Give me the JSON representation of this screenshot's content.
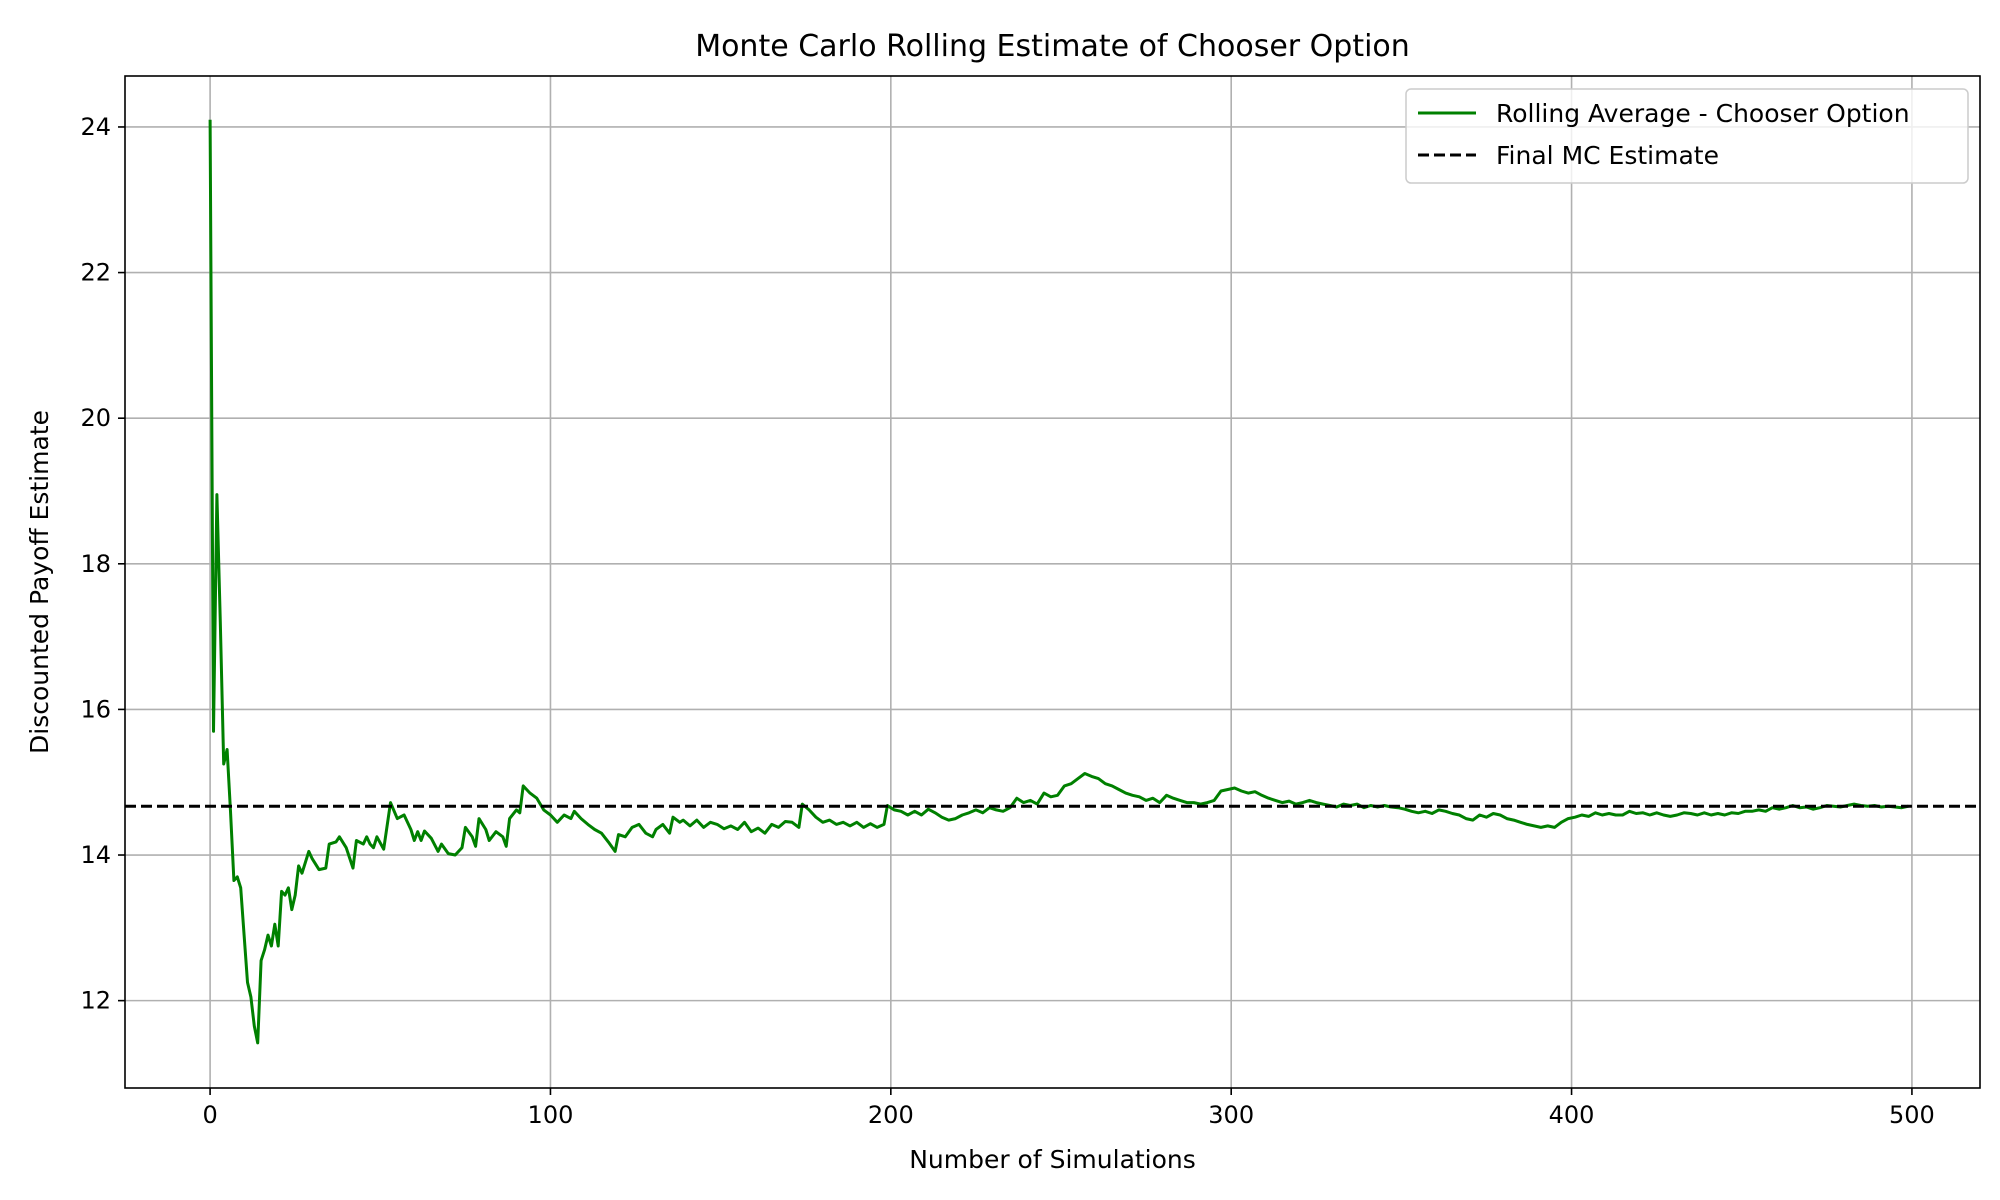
{
  "chart_data": {
    "type": "line",
    "title": "Monte Carlo Rolling Estimate of Chooser Option",
    "xlabel": "Number of Simulations",
    "ylabel": "Discounted Payoff Estimate",
    "xlim": [
      -25,
      520
    ],
    "ylim": [
      10.8,
      24.7
    ],
    "xticks": [
      0,
      100,
      200,
      300,
      400,
      500
    ],
    "yticks": [
      12,
      14,
      16,
      18,
      20,
      22,
      24
    ],
    "grid": true,
    "legend_position": "top-right",
    "series": [
      {
        "name": "Rolling Average - Chooser Option",
        "color": "#008000",
        "style": "solid",
        "points": [
          [
            0,
            24.1
          ],
          [
            1,
            15.7
          ],
          [
            2,
            18.95
          ],
          [
            3,
            17.2
          ],
          [
            4,
            15.25
          ],
          [
            5,
            15.45
          ],
          [
            6,
            14.6
          ],
          [
            7,
            13.65
          ],
          [
            8,
            13.7
          ],
          [
            9,
            13.55
          ],
          [
            10,
            12.9
          ],
          [
            11,
            12.25
          ],
          [
            12,
            12.05
          ],
          [
            13,
            11.65
          ],
          [
            14,
            11.42
          ],
          [
            15,
            12.55
          ],
          [
            16,
            12.7
          ],
          [
            17,
            12.9
          ],
          [
            18,
            12.75
          ],
          [
            19,
            13.05
          ],
          [
            20,
            12.75
          ],
          [
            21,
            13.5
          ],
          [
            22,
            13.45
          ],
          [
            23,
            13.55
          ],
          [
            24,
            13.25
          ],
          [
            25,
            13.45
          ],
          [
            26,
            13.85
          ],
          [
            27,
            13.75
          ],
          [
            28,
            13.9
          ],
          [
            29,
            14.05
          ],
          [
            30,
            13.95
          ],
          [
            32,
            13.8
          ],
          [
            34,
            13.82
          ],
          [
            35,
            14.15
          ],
          [
            37,
            14.18
          ],
          [
            38,
            14.25
          ],
          [
            40,
            14.1
          ],
          [
            42,
            13.82
          ],
          [
            43,
            14.2
          ],
          [
            45,
            14.15
          ],
          [
            46,
            14.25
          ],
          [
            47,
            14.15
          ],
          [
            48,
            14.1
          ],
          [
            49,
            14.25
          ],
          [
            51,
            14.08
          ],
          [
            53,
            14.72
          ],
          [
            55,
            14.5
          ],
          [
            57,
            14.55
          ],
          [
            59,
            14.35
          ],
          [
            60,
            14.2
          ],
          [
            61,
            14.32
          ],
          [
            62,
            14.2
          ],
          [
            63,
            14.33
          ],
          [
            65,
            14.23
          ],
          [
            67,
            14.05
          ],
          [
            68,
            14.15
          ],
          [
            70,
            14.02
          ],
          [
            72,
            14.0
          ],
          [
            74,
            14.1
          ],
          [
            75,
            14.38
          ],
          [
            77,
            14.25
          ],
          [
            78,
            14.12
          ],
          [
            79,
            14.5
          ],
          [
            81,
            14.35
          ],
          [
            82,
            14.2
          ],
          [
            84,
            14.32
          ],
          [
            86,
            14.25
          ],
          [
            87,
            14.12
          ],
          [
            88,
            14.5
          ],
          [
            90,
            14.62
          ],
          [
            91,
            14.58
          ],
          [
            92,
            14.95
          ],
          [
            94,
            14.85
          ],
          [
            96,
            14.78
          ],
          [
            98,
            14.62
          ],
          [
            100,
            14.55
          ],
          [
            102,
            14.45
          ],
          [
            104,
            14.55
          ],
          [
            106,
            14.5
          ],
          [
            107,
            14.6
          ],
          [
            109,
            14.5
          ],
          [
            111,
            14.42
          ],
          [
            113,
            14.35
          ],
          [
            115,
            14.3
          ],
          [
            117,
            14.18
          ],
          [
            119,
            14.05
          ],
          [
            120,
            14.28
          ],
          [
            122,
            14.25
          ],
          [
            124,
            14.38
          ],
          [
            126,
            14.42
          ],
          [
            128,
            14.3
          ],
          [
            130,
            14.25
          ],
          [
            131,
            14.35
          ],
          [
            133,
            14.42
          ],
          [
            135,
            14.3
          ],
          [
            136,
            14.52
          ],
          [
            138,
            14.45
          ],
          [
            139,
            14.48
          ],
          [
            141,
            14.4
          ],
          [
            143,
            14.48
          ],
          [
            145,
            14.38
          ],
          [
            147,
            14.45
          ],
          [
            149,
            14.42
          ],
          [
            151,
            14.36
          ],
          [
            153,
            14.4
          ],
          [
            155,
            14.35
          ],
          [
            157,
            14.45
          ],
          [
            159,
            14.32
          ],
          [
            161,
            14.37
          ],
          [
            163,
            14.3
          ],
          [
            165,
            14.42
          ],
          [
            167,
            14.38
          ],
          [
            169,
            14.46
          ],
          [
            171,
            14.45
          ],
          [
            173,
            14.38
          ],
          [
            174,
            14.7
          ],
          [
            176,
            14.62
          ],
          [
            178,
            14.52
          ],
          [
            180,
            14.45
          ],
          [
            182,
            14.48
          ],
          [
            184,
            14.42
          ],
          [
            186,
            14.45
          ],
          [
            188,
            14.4
          ],
          [
            190,
            14.45
          ],
          [
            192,
            14.38
          ],
          [
            194,
            14.43
          ],
          [
            196,
            14.38
          ],
          [
            198,
            14.42
          ],
          [
            199,
            14.68
          ],
          [
            201,
            14.62
          ],
          [
            203,
            14.6
          ],
          [
            205,
            14.55
          ],
          [
            207,
            14.6
          ],
          [
            209,
            14.55
          ],
          [
            211,
            14.63
          ],
          [
            213,
            14.58
          ],
          [
            215,
            14.52
          ],
          [
            217,
            14.48
          ],
          [
            219,
            14.5
          ],
          [
            221,
            14.55
          ],
          [
            223,
            14.58
          ],
          [
            225,
            14.62
          ],
          [
            227,
            14.58
          ],
          [
            229,
            14.65
          ],
          [
            231,
            14.62
          ],
          [
            233,
            14.6
          ],
          [
            235,
            14.65
          ],
          [
            237,
            14.78
          ],
          [
            239,
            14.72
          ],
          [
            241,
            14.75
          ],
          [
            243,
            14.7
          ],
          [
            245,
            14.85
          ],
          [
            247,
            14.8
          ],
          [
            249,
            14.82
          ],
          [
            251,
            14.95
          ],
          [
            253,
            14.98
          ],
          [
            255,
            15.05
          ],
          [
            257,
            15.12
          ],
          [
            259,
            15.08
          ],
          [
            261,
            15.05
          ],
          [
            263,
            14.98
          ],
          [
            265,
            14.95
          ],
          [
            267,
            14.9
          ],
          [
            269,
            14.85
          ],
          [
            271,
            14.82
          ],
          [
            273,
            14.8
          ],
          [
            275,
            14.75
          ],
          [
            277,
            14.78
          ],
          [
            279,
            14.72
          ],
          [
            281,
            14.82
          ],
          [
            283,
            14.78
          ],
          [
            285,
            14.75
          ],
          [
            287,
            14.72
          ],
          [
            289,
            14.72
          ],
          [
            291,
            14.7
          ],
          [
            293,
            14.72
          ],
          [
            295,
            14.75
          ],
          [
            297,
            14.88
          ],
          [
            299,
            14.9
          ],
          [
            301,
            14.92
          ],
          [
            303,
            14.88
          ],
          [
            305,
            14.85
          ],
          [
            307,
            14.87
          ],
          [
            309,
            14.82
          ],
          [
            311,
            14.78
          ],
          [
            313,
            14.75
          ],
          [
            315,
            14.72
          ],
          [
            317,
            14.74
          ],
          [
            319,
            14.7
          ],
          [
            321,
            14.72
          ],
          [
            323,
            14.75
          ],
          [
            325,
            14.72
          ],
          [
            327,
            14.7
          ],
          [
            329,
            14.68
          ],
          [
            331,
            14.66
          ],
          [
            333,
            14.7
          ],
          [
            335,
            14.68
          ],
          [
            337,
            14.7
          ],
          [
            339,
            14.65
          ],
          [
            341,
            14.68
          ],
          [
            343,
            14.66
          ],
          [
            345,
            14.68
          ],
          [
            347,
            14.66
          ],
          [
            349,
            14.65
          ],
          [
            351,
            14.63
          ],
          [
            353,
            14.6
          ],
          [
            355,
            14.58
          ],
          [
            357,
            14.6
          ],
          [
            359,
            14.57
          ],
          [
            361,
            14.62
          ],
          [
            363,
            14.6
          ],
          [
            365,
            14.57
          ],
          [
            367,
            14.55
          ],
          [
            369,
            14.5
          ],
          [
            371,
            14.48
          ],
          [
            373,
            14.55
          ],
          [
            375,
            14.52
          ],
          [
            377,
            14.57
          ],
          [
            379,
            14.55
          ],
          [
            381,
            14.5
          ],
          [
            383,
            14.48
          ],
          [
            385,
            14.45
          ],
          [
            387,
            14.42
          ],
          [
            389,
            14.4
          ],
          [
            391,
            14.38
          ],
          [
            393,
            14.4
          ],
          [
            395,
            14.38
          ],
          [
            397,
            14.45
          ],
          [
            399,
            14.5
          ],
          [
            401,
            14.52
          ],
          [
            403,
            14.55
          ],
          [
            405,
            14.53
          ],
          [
            407,
            14.58
          ],
          [
            409,
            14.55
          ],
          [
            411,
            14.57
          ],
          [
            413,
            14.55
          ],
          [
            415,
            14.55
          ],
          [
            417,
            14.6
          ],
          [
            419,
            14.57
          ],
          [
            421,
            14.58
          ],
          [
            423,
            14.55
          ],
          [
            425,
            14.58
          ],
          [
            427,
            14.55
          ],
          [
            429,
            14.53
          ],
          [
            431,
            14.55
          ],
          [
            433,
            14.58
          ],
          [
            435,
            14.57
          ],
          [
            437,
            14.55
          ],
          [
            439,
            14.58
          ],
          [
            441,
            14.55
          ],
          [
            443,
            14.57
          ],
          [
            445,
            14.55
          ],
          [
            447,
            14.58
          ],
          [
            449,
            14.57
          ],
          [
            451,
            14.6
          ],
          [
            453,
            14.6
          ],
          [
            455,
            14.62
          ],
          [
            457,
            14.6
          ],
          [
            459,
            14.65
          ],
          [
            461,
            14.63
          ],
          [
            463,
            14.65
          ],
          [
            465,
            14.68
          ],
          [
            467,
            14.65
          ],
          [
            469,
            14.66
          ],
          [
            471,
            14.63
          ],
          [
            473,
            14.65
          ],
          [
            475,
            14.68
          ],
          [
            477,
            14.67
          ],
          [
            479,
            14.66
          ],
          [
            481,
            14.68
          ],
          [
            483,
            14.7
          ],
          [
            485,
            14.68
          ],
          [
            487,
            14.67
          ],
          [
            489,
            14.68
          ],
          [
            491,
            14.66
          ],
          [
            493,
            14.67
          ],
          [
            495,
            14.66
          ],
          [
            497,
            14.65
          ],
          [
            499,
            14.67
          ]
        ]
      },
      {
        "name": "Final MC Estimate",
        "color": "#000000",
        "style": "dashed",
        "y": 14.67
      }
    ]
  }
}
